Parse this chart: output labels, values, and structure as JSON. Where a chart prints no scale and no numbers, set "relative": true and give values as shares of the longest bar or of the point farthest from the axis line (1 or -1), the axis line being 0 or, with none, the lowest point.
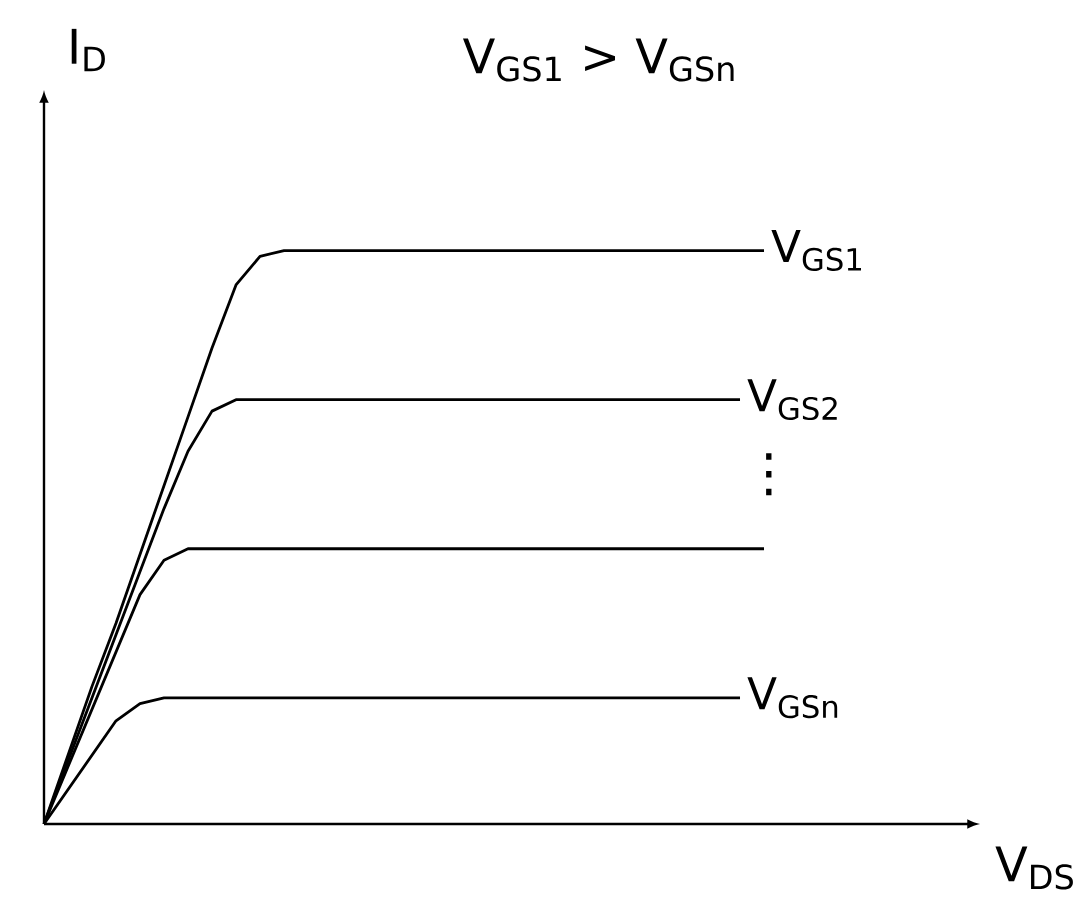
{
  "chart_data": {
    "type": "line",
    "relative": true,
    "title": "V$_{GS1}$ > V$_{GSn}$",
    "xlabel": "V$_{DS}$",
    "ylabel": "I$_{D}$",
    "annotations": [
      "⋮"
    ],
    "categories": [
      null,
      null,
      null,
      null,
      null,
      null,
      null,
      null,
      null,
      null,
      null,
      null,
      null,
      null,
      null,
      null,
      null,
      null,
      null,
      null,
      null,
      null,
      null,
      null,
      null,
      null,
      null,
      null,
      null,
      null,
      null,
      null,
      null,
      null,
      null,
      null,
      null,
      null,
      null,
      null
    ],
    "series": [
      {
        "name": "V$_{GS1}$",
        "color": "#000000",
        "values": [
          0,
          0.12,
          0.24,
          0.35,
          0.47,
          0.59,
          0.71,
          0.83,
          0.94,
          0.99,
          1,
          1,
          1,
          1,
          1,
          1,
          1,
          1,
          1,
          1,
          1,
          1,
          1,
          1,
          1,
          1,
          1,
          1,
          1,
          1,
          1,
          null,
          null,
          null,
          null,
          null,
          null,
          null,
          null,
          null
        ]
      },
      {
        "name": "V$_{GS2}$",
        "color": "#000000",
        "values": [
          0,
          0.11,
          0.22,
          0.33,
          0.44,
          0.55,
          0.65,
          0.72,
          0.74,
          0.74,
          0.74,
          0.74,
          0.74,
          0.74,
          0.74,
          0.74,
          0.74,
          0.74,
          0.74,
          0.74,
          0.74,
          0.74,
          0.74,
          0.74,
          0.74,
          0.74,
          0.74,
          0.74,
          0.74,
          0.74,
          null,
          null,
          null,
          null,
          null,
          null,
          null,
          null,
          null,
          null
        ]
      },
      {
        "color": "#000000",
        "values": [
          0,
          0.1,
          0.2,
          0.3,
          0.4,
          0.46,
          0.48,
          0.48,
          0.48,
          0.48,
          0.48,
          0.48,
          0.48,
          0.48,
          0.48,
          0.48,
          0.48,
          0.48,
          0.48,
          0.48,
          0.48,
          0.48,
          0.48,
          0.48,
          0.48,
          0.48,
          0.48,
          0.48,
          0.48,
          0.48,
          0.48,
          null,
          null,
          null,
          null,
          null,
          null,
          null,
          null,
          null
        ]
      },
      {
        "name": "V$_{GSn}$",
        "color": "#000000",
        "values": [
          0,
          0.06,
          0.12,
          0.18,
          0.21,
          0.22,
          0.22,
          0.22,
          0.22,
          0.22,
          0.22,
          0.22,
          0.22,
          0.22,
          0.22,
          0.22,
          0.22,
          0.22,
          0.22,
          0.22,
          0.22,
          0.22,
          0.22,
          0.22,
          0.22,
          0.22,
          0.22,
          0.22,
          0.22,
          0.22,
          null,
          null,
          null,
          null,
          null,
          null,
          null,
          null,
          null,
          null
        ]
      }
    ]
  }
}
